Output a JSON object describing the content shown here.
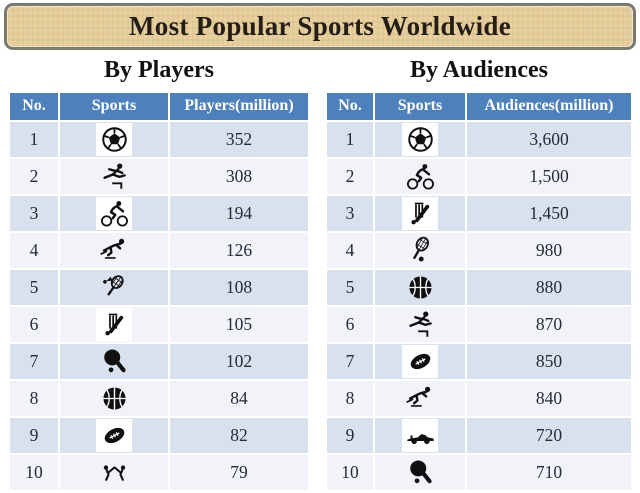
{
  "title": "Most Popular Sports Worldwide",
  "colors": {
    "banner_bg": "#e8d1a0",
    "banner_border": "#7c7b72",
    "header_bg": "#4e80bb",
    "header_text": "#ffffff",
    "row_shaded": "#d9e0ee",
    "row_light": "#f1f3f9",
    "cell_text": "#242b38"
  },
  "tables": [
    {
      "section_title": "By Players",
      "columns": [
        "No.",
        "Sports",
        "Players(million)"
      ],
      "rows": [
        {
          "no": "1",
          "icon": "soccer-ball-icon",
          "value": "352",
          "plate": true
        },
        {
          "no": "2",
          "icon": "hurdles-icon",
          "value": "308",
          "plate": false
        },
        {
          "no": "3",
          "icon": "cycling-icon",
          "value": "194",
          "plate": true
        },
        {
          "no": "4",
          "icon": "speed-skating-icon",
          "value": "126",
          "plate": false
        },
        {
          "no": "5",
          "icon": "badminton-icon",
          "value": "108",
          "plate": false
        },
        {
          "no": "6",
          "icon": "cricket-icon",
          "value": "105",
          "plate": true
        },
        {
          "no": "7",
          "icon": "table-tennis-icon",
          "value": "102",
          "plate": false
        },
        {
          "no": "8",
          "icon": "basketball-icon",
          "value": "84",
          "plate": false
        },
        {
          "no": "9",
          "icon": "rugby-ball-icon",
          "value": "82",
          "plate": true
        },
        {
          "no": "10",
          "icon": "taekwondo-icon",
          "value": "79",
          "plate": false
        }
      ]
    },
    {
      "section_title": "By Audiences",
      "columns": [
        "No.",
        "Sports",
        "Audiences(million)"
      ],
      "rows": [
        {
          "no": "1",
          "icon": "soccer-ball-icon",
          "value": "3,600",
          "plate": true
        },
        {
          "no": "2",
          "icon": "cycling-icon",
          "value": "1,500",
          "plate": false
        },
        {
          "no": "3",
          "icon": "cricket-icon",
          "value": "1,450",
          "plate": true
        },
        {
          "no": "4",
          "icon": "tennis-icon",
          "value": "980",
          "plate": false
        },
        {
          "no": "5",
          "icon": "basketball-icon",
          "value": "880",
          "plate": false
        },
        {
          "no": "6",
          "icon": "hurdles-icon",
          "value": "870",
          "plate": false
        },
        {
          "no": "7",
          "icon": "rugby-ball-icon",
          "value": "850",
          "plate": true
        },
        {
          "no": "8",
          "icon": "speed-skating-icon",
          "value": "840",
          "plate": false
        },
        {
          "no": "9",
          "icon": "formula1-car-icon",
          "value": "720",
          "plate": true
        },
        {
          "no": "10",
          "icon": "table-tennis-icon",
          "value": "710",
          "plate": false
        }
      ]
    }
  ],
  "chart_data": [
    {
      "type": "table",
      "title": "By Players",
      "columns": [
        "No.",
        "Sports",
        "Players(million)"
      ],
      "rows": [
        [
          1,
          "Soccer",
          352
        ],
        [
          2,
          "Athletics (hurdles)",
          308
        ],
        [
          3,
          "Cycling",
          194
        ],
        [
          4,
          "Speed skating",
          126
        ],
        [
          5,
          "Badminton",
          108
        ],
        [
          6,
          "Cricket",
          105
        ],
        [
          7,
          "Table tennis",
          102
        ],
        [
          8,
          "Basketball",
          84
        ],
        [
          9,
          "Rugby",
          82
        ],
        [
          10,
          "Taekwondo",
          79
        ]
      ]
    },
    {
      "type": "table",
      "title": "By Audiences",
      "columns": [
        "No.",
        "Sports",
        "Audiences(million)"
      ],
      "rows": [
        [
          1,
          "Soccer",
          3600
        ],
        [
          2,
          "Cycling",
          1500
        ],
        [
          3,
          "Cricket",
          1450
        ],
        [
          4,
          "Tennis",
          980
        ],
        [
          5,
          "Basketball",
          880
        ],
        [
          6,
          "Athletics (hurdles)",
          870
        ],
        [
          7,
          "Rugby",
          850
        ],
        [
          8,
          "Speed skating",
          840
        ],
        [
          9,
          "Formula 1",
          720
        ],
        [
          10,
          "Table tennis",
          710
        ]
      ]
    }
  ]
}
